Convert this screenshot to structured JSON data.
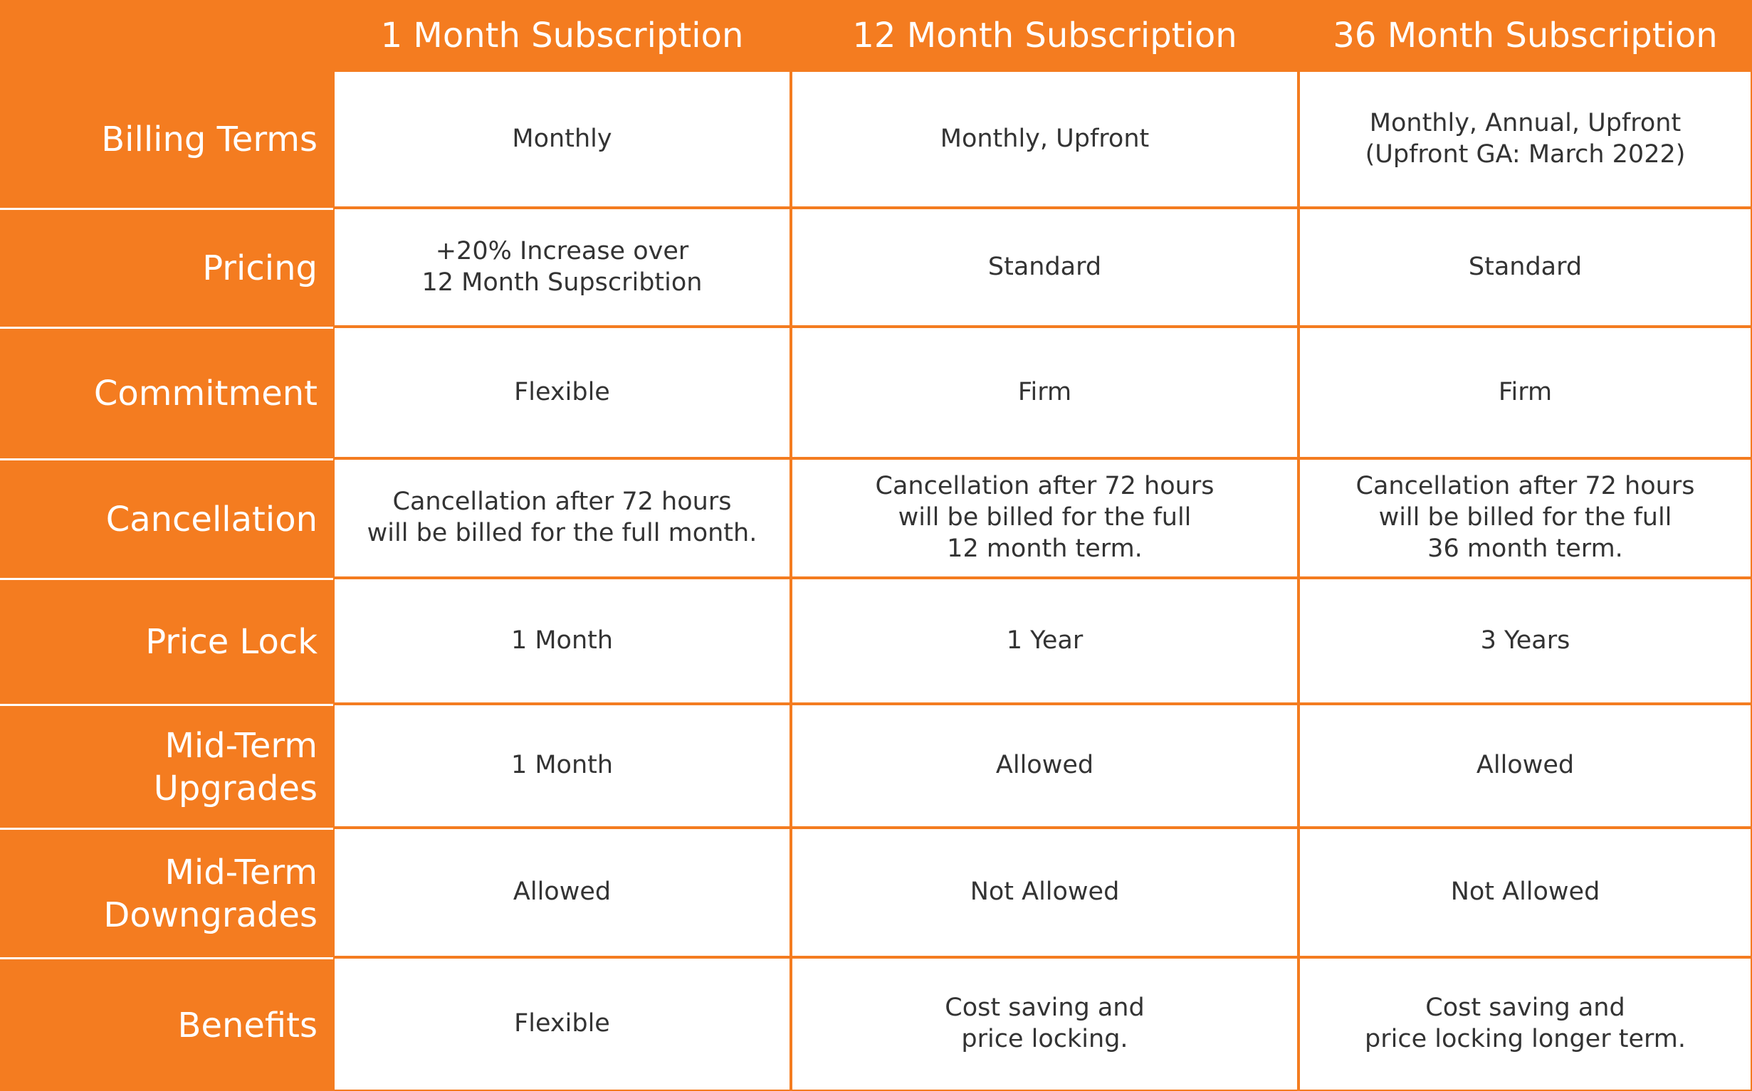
{
  "header": {
    "columns": [
      "1 Month Subscription",
      "12 Month Subscription",
      "36 Month Subscription"
    ]
  },
  "rows": [
    {
      "label": "Billing Terms",
      "cells": [
        "Monthly",
        "Monthly, Upfront",
        "Monthly, Annual, Upfront\n(Upfront GA: March 2022)"
      ]
    },
    {
      "label": "Pricing",
      "cells": [
        "+20% Increase over\n12 Month Supscribtion",
        "Standard",
        "Standard"
      ]
    },
    {
      "label": "Commitment",
      "cells": [
        "Flexible",
        "Firm",
        "Firm"
      ]
    },
    {
      "label": "Cancellation",
      "cells": [
        "Cancellation after 72 hours\nwill be billed for the full month.",
        "Cancellation after 72 hours\nwill be billed for the full\n12 month term.",
        "Cancellation after 72 hours\nwill be billed for the full\n36 month term."
      ]
    },
    {
      "label": "Price Lock",
      "cells": [
        "1 Month",
        "1 Year",
        "3 Years"
      ]
    },
    {
      "label": "Mid-Term\nUpgrades",
      "cells": [
        "1 Month",
        "Allowed",
        "Allowed"
      ]
    },
    {
      "label": "Mid-Term\nDowngrades",
      "cells": [
        "Allowed",
        "Not Allowed",
        "Not Allowed"
      ]
    },
    {
      "label": "Benefits",
      "cells": [
        "Flexible",
        "Cost saving and\nprice locking.",
        "Cost saving and\nprice locking longer term."
      ]
    }
  ]
}
